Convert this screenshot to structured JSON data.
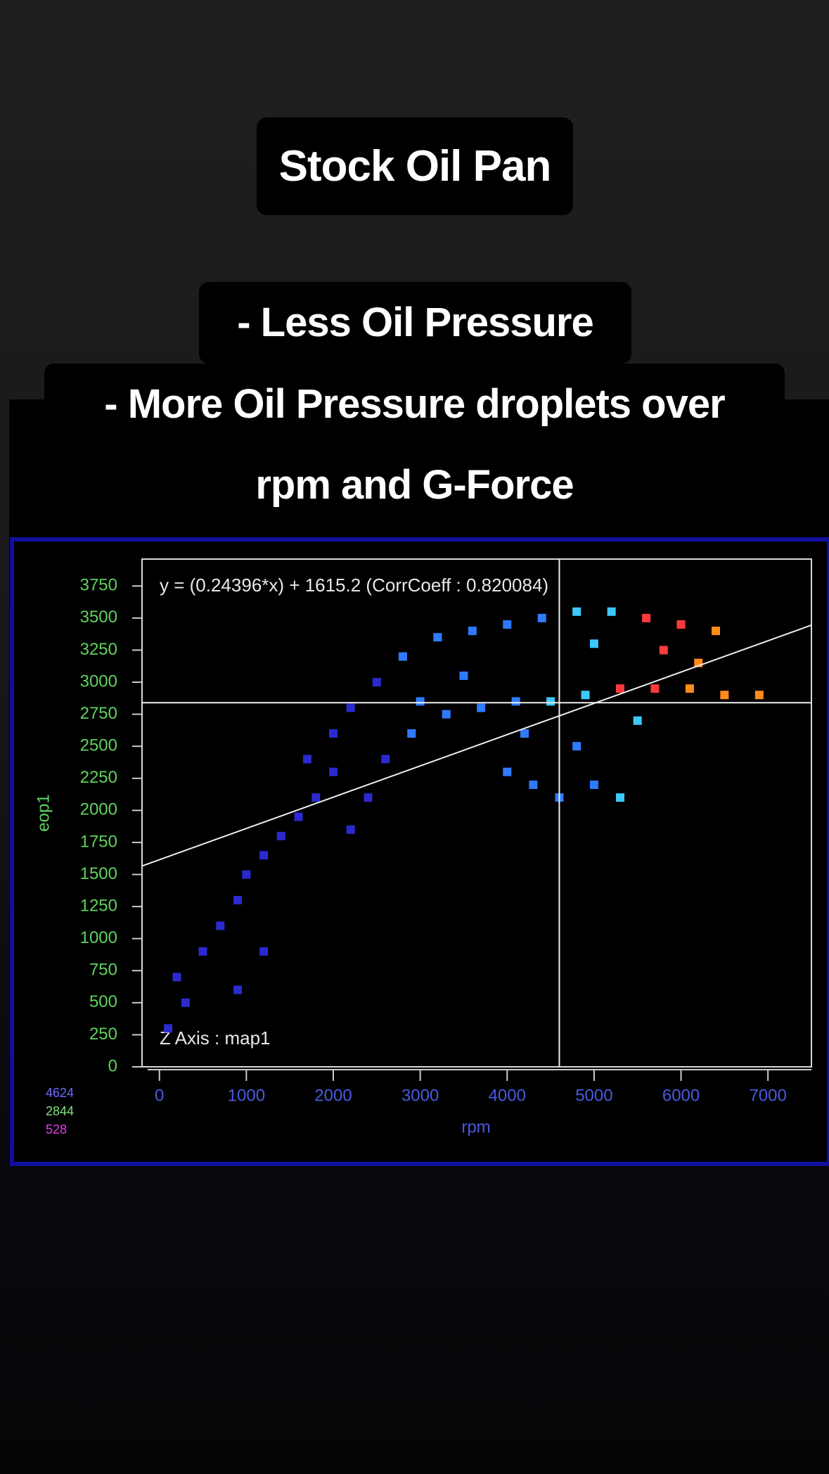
{
  "header": {
    "title": "Stock Oil Pan",
    "bullets": [
      "- Less Oil Pressure",
      "- More Oil Pressure droplets over rpm and G-Force"
    ]
  },
  "chart_data": {
    "type": "scatter",
    "annotation": "y = (0.24396*x) + 1615.2  (CorrCoeff : 0.820084)",
    "z_label": "Z Axis : map1",
    "xlabel": "rpm",
    "ylabel": "eop1",
    "xlim": [
      -200,
      7500
    ],
    "ylim": [
      0,
      3960
    ],
    "xticks": [
      0,
      1000,
      2000,
      3000,
      4000,
      5000,
      6000,
      7000
    ],
    "yticks": [
      0,
      250,
      500,
      750,
      1000,
      1250,
      1500,
      1750,
      2000,
      2250,
      2500,
      2750,
      3000,
      3250,
      3500,
      3750
    ],
    "z_legend": [
      {
        "value": 4624,
        "color": "#6a6aff"
      },
      {
        "value": 2844,
        "color": "#7ee07e"
      },
      {
        "value": 528,
        "color": "#e040e0"
      }
    ],
    "colormap": [
      "#2a2acf",
      "#2f7bff",
      "#3cc8ff",
      "#ff3a3a",
      "#ff8c1a"
    ],
    "fit": {
      "slope": 0.24396,
      "intercept": 1615.2
    },
    "cursor": {
      "x": 4600,
      "y": 2840
    },
    "x": [
      100,
      200,
      300,
      500,
      700,
      900,
      1000,
      1200,
      1400,
      1600,
      1800,
      2000,
      2000,
      1700,
      2200,
      2500,
      2800,
      3200,
      3600,
      4000,
      4400,
      4800,
      5200,
      5600,
      6000,
      6400,
      2200,
      2400,
      2600,
      2900,
      3300,
      3700,
      4100,
      4500,
      4900,
      5300,
      5700,
      6100,
      6500,
      6900,
      4000,
      4300,
      4600,
      5000,
      5300,
      4200,
      4800,
      5500,
      5000,
      5800,
      6200,
      3500,
      3000,
      1200,
      900
    ],
    "values": [
      300,
      700,
      500,
      900,
      1100,
      1300,
      1500,
      1650,
      1800,
      1950,
      2100,
      2300,
      2600,
      2400,
      2800,
      3000,
      3200,
      3350,
      3400,
      3450,
      3500,
      3550,
      3550,
      3500,
      3450,
      3400,
      1850,
      2100,
      2400,
      2600,
      2750,
      2800,
      2850,
      2850,
      2900,
      2950,
      2950,
      2950,
      2900,
      2900,
      2300,
      2200,
      2100,
      2200,
      2100,
      2600,
      2500,
      2700,
      3300,
      3250,
      3150,
      3050,
      2850,
      900,
      600
    ],
    "z": [
      600,
      600,
      650,
      700,
      700,
      800,
      900,
      950,
      1000,
      1050,
      1100,
      1150,
      1100,
      1050,
      1200,
      1300,
      1350,
      1500,
      1700,
      1900,
      2100,
      2400,
      2900,
      3400,
      3800,
      4100,
      1150,
      1200,
      1300,
      1400,
      1600,
      1800,
      2000,
      2300,
      2700,
      3200,
      3700,
      4100,
      4400,
      4600,
      1700,
      1800,
      1900,
      2100,
      2200,
      1800,
      2000,
      2600,
      2700,
      3600,
      4000,
      1500,
      1400,
      800,
      700
    ]
  }
}
